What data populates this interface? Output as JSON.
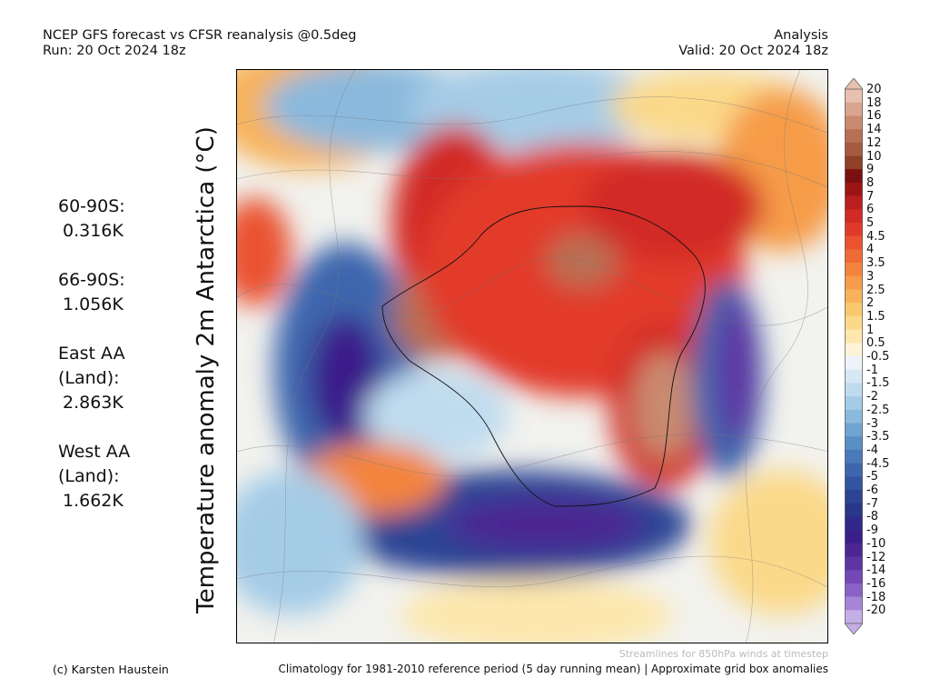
{
  "header": {
    "title_line1": "NCEP GFS forecast vs CFSR reanalysis @0.5deg",
    "title_line2": "Run: 20 Oct 2024 18z",
    "right_line1": "Analysis",
    "right_line2": "Valid: 20 Oct 2024 18z"
  },
  "stats": [
    {
      "label": "60-90S:",
      "value": "0.316K"
    },
    {
      "label": "66-90S:",
      "value": "1.056K"
    },
    {
      "label": "East AA\n(Land):",
      "value": "2.863K"
    },
    {
      "label": "West AA\n(Land):",
      "value": "1.662K"
    }
  ],
  "map": {
    "ylabel": "Temperature anomaly 2m Antarctica (°C)",
    "projection": "south-polar-stereographic",
    "overlay": "streamlines"
  },
  "colorbar": {
    "labels": [
      "20",
      "18",
      "16",
      "14",
      "12",
      "10",
      "9",
      "8",
      "7",
      "6",
      "5",
      "4.5",
      "4",
      "3.5",
      "3",
      "2.5",
      "2",
      "1.5",
      "1",
      "0.5",
      "-0.5",
      "-1",
      "-1.5",
      "-2",
      "-2.5",
      "-3",
      "-3.5",
      "-4",
      "-4.5",
      "-5",
      "-6",
      "-7",
      "-8",
      "-9",
      "-10",
      "-12",
      "-14",
      "-16",
      "-18",
      "-20"
    ],
    "colors": [
      "#e8c0b0",
      "#d9a58e",
      "#c98a70",
      "#b87055",
      "#a65a40",
      "#8e4128",
      "#7a1010",
      "#9b1515",
      "#bb1e1e",
      "#d22a26",
      "#e23a2a",
      "#ea5230",
      "#ef6a36",
      "#f3843e",
      "#f69c4a",
      "#f8b35a",
      "#fac86e",
      "#fbd98a",
      "#fde7ac",
      "#fdf3d8",
      "#edf3fa",
      "#d7e8f5",
      "#bfdcef",
      "#a5cce7",
      "#8ab9dd",
      "#70a4d2",
      "#5a8fc6",
      "#4a7aba",
      "#3d66ad",
      "#3354a0",
      "#2b4494",
      "#2a3688",
      "#30288a",
      "#3a1f8a",
      "#4b2793",
      "#5e36a3",
      "#7448b5",
      "#8a62c6",
      "#a585d6",
      "#c4aee6"
    ]
  },
  "footer": {
    "credit": "(c) Karsten Haustein",
    "note": "Streamlines for 850hPa winds at timestep",
    "climatology": "Climatology for 1981-2010 reference period (5 day running mean) | Approximate grid box anomalies"
  }
}
